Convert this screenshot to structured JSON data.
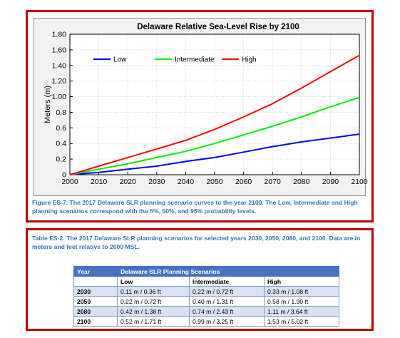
{
  "figure": {
    "caption": "Figure ES-7.  The 2017 Delaware SLR planning scenario curves to the year 2100.  The Low, Intermediate and High planning scenarios correspond with the 5%, 50%, and 95% probability levels."
  },
  "chart_data": {
    "type": "line",
    "title": "Delaware Relative Sea-Level Rise by 2100",
    "xlabel": "",
    "ylabel": "Meters (m)",
    "x": [
      2000,
      2010,
      2020,
      2030,
      2040,
      2050,
      2060,
      2070,
      2080,
      2090,
      2100
    ],
    "xlim": [
      2000,
      2100
    ],
    "ylim": [
      0,
      1.8
    ],
    "x_ticks": [
      "2000",
      "2010",
      "2020",
      "2030",
      "2040",
      "2050",
      "2060",
      "2070",
      "2080",
      "2090",
      "2100"
    ],
    "y_ticks": [
      "0",
      "0.2",
      "0.4",
      "0.6",
      "0.8",
      "1.00",
      "1.20",
      "1.40",
      "1.60",
      "1.80"
    ],
    "grid": true,
    "legend_position": "top-left",
    "series": [
      {
        "name": "Low",
        "color": "#0000ff",
        "values": [
          0,
          0.03,
          0.07,
          0.11,
          0.17,
          0.22,
          0.29,
          0.36,
          0.42,
          0.47,
          0.52
        ]
      },
      {
        "name": "Intermediate",
        "color": "#00ee00",
        "values": [
          0,
          0.07,
          0.14,
          0.22,
          0.3,
          0.4,
          0.51,
          0.62,
          0.74,
          0.87,
          0.99
        ]
      },
      {
        "name": "High",
        "color": "#ff0000",
        "values": [
          0,
          0.11,
          0.22,
          0.33,
          0.44,
          0.58,
          0.74,
          0.91,
          1.11,
          1.32,
          1.53
        ]
      }
    ]
  },
  "table": {
    "caption": "Table ES-2.  The 2017 Delaware SLR planning scenarios for selected years 2030, 2050, 2080, and 2100. Data are in meters and feet relative to 2000 MSL.",
    "header_year": "Year",
    "header_group": "Delaware SLR Planning Scenarios",
    "columns": [
      "Low",
      "Intermediate",
      "High"
    ],
    "rows": [
      {
        "year": "2030",
        "low": "0.11 m / 0.36 ft",
        "intermediate": "0.22 m / 0.72 ft",
        "high": "0.33 m / 1.08 ft"
      },
      {
        "year": "2050",
        "low": "0.22 m / 0.72 ft",
        "intermediate": "0.40 m / 1.31 ft",
        "high": "0.58 m / 1.90 ft"
      },
      {
        "year": "2080",
        "low": "0.42 m / 1.38 ft",
        "intermediate": "0.74 m / 2.43 ft",
        "high": "1.11 m / 3.64 ft"
      },
      {
        "year": "2100",
        "low": "0.52 m / 1.71 ft",
        "intermediate": "0.99 m / 3.25 ft",
        "high": "1.53 m / 5.02 ft"
      }
    ]
  }
}
